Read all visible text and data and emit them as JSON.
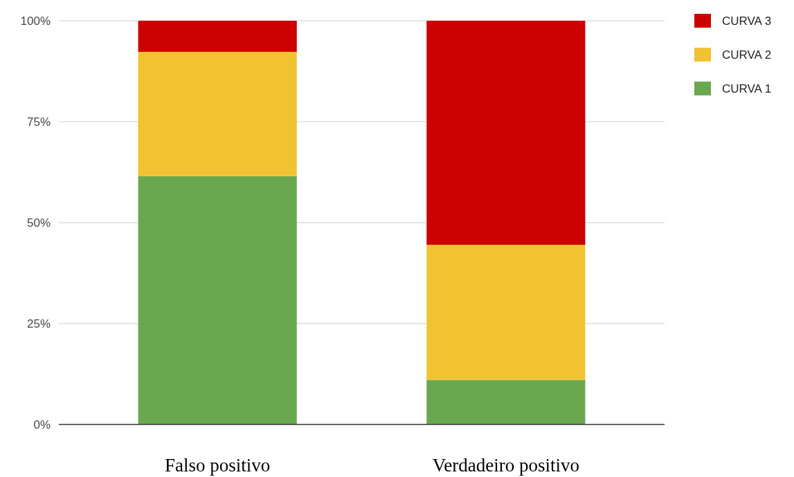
{
  "chart_data": {
    "type": "bar",
    "stacked": true,
    "categories": [
      "Falso positivo",
      "Verdadeiro positivo"
    ],
    "series": [
      {
        "name": "CURVA 1",
        "color": "#6aa84f",
        "values": [
          61.5,
          11.0
        ]
      },
      {
        "name": "CURVA 2",
        "color": "#f1c232",
        "values": [
          30.8,
          33.5
        ]
      },
      {
        "name": "CURVA 3",
        "color": "#cc0000",
        "values": [
          7.7,
          55.5
        ]
      }
    ],
    "ylim": [
      0,
      100
    ],
    "yticks": [
      {
        "value": 0,
        "label": "0%"
      },
      {
        "value": 25,
        "label": "25%"
      },
      {
        "value": 50,
        "label": "50%"
      },
      {
        "value": 75,
        "label": "75%"
      },
      {
        "value": 100,
        "label": "100%"
      }
    ],
    "grid": "y",
    "legend": "top right"
  }
}
